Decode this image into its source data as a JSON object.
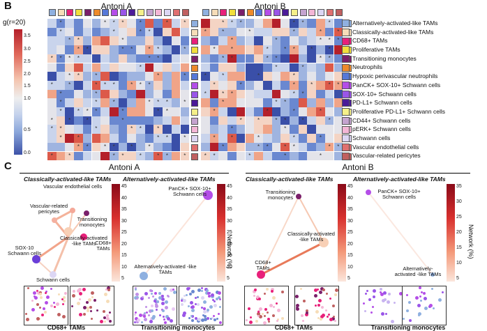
{
  "panel_b": {
    "letter": "B",
    "colorbar_title": "g(r=20)",
    "colorbar_ticks": [
      "3.5",
      "3.0",
      "2.5",
      "2.0",
      "1.5",
      "1.0",
      "0.5",
      "0.0"
    ],
    "heatmap_a_title": "Antoni A",
    "heatmap_b_title": "Antoni B",
    "cell_types": [
      {
        "name": "Alternatively-activated-like TAMs",
        "color": "#8fb0e0"
      },
      {
        "name": "Classically-activated-like TAMs",
        "color": "#f6ddb8"
      },
      {
        "name": "CD68+ TAMs",
        "color": "#e8207a"
      },
      {
        "name": "Proliferative TAMs",
        "color": "#f2df3c"
      },
      {
        "name": "Transitioning monocytes",
        "color": "#7a1f6a"
      },
      {
        "name": "Neutrophils",
        "color": "#ee8a2a"
      },
      {
        "name": "Hypoxic perivascular neutrophils",
        "color": "#5578d8"
      },
      {
        "name": "PanCK+ SOX-10+ Schwann cells",
        "color": "#b44ee8"
      },
      {
        "name": "SOX-10+ Schwann cells",
        "color": "#9a55e8"
      },
      {
        "name": "PD-L1+ Schwann cells",
        "color": "#4a1a98"
      },
      {
        "name": "Proliferative PD-L1+ Schwann cells",
        "color": "#f5f08a"
      },
      {
        "name": "CD44+ Schwann cells",
        "color": "#c5a4d0"
      },
      {
        "name": "pERK+ Schwann cells",
        "color": "#f4b6d6"
      },
      {
        "name": "Schwann cells",
        "color": "#dcd6f4"
      },
      {
        "name": "Vascular endothelial cells",
        "color": "#e07070"
      },
      {
        "name": "Vascular-related pericytes",
        "color": "#c06060"
      }
    ]
  },
  "panel_c": {
    "letter": "C",
    "group_a_title": "Antoni A",
    "group_b_title": "Antoni B",
    "networks": [
      {
        "subtitle": "Classically-activated-like TAMs",
        "labels": [
          "Vascular endothelial cells",
          "Vascular-related pericytes",
          "Transitioning monocytes",
          "Classically-activated -like TAMs",
          "CD68+ TAMs",
          "SOX-10 Schwann cells",
          "Schwann cells"
        ],
        "ticks": [
          "45",
          "40",
          "35",
          "30",
          "25",
          "20",
          "15",
          "10",
          "5"
        ],
        "scale": "red"
      },
      {
        "subtitle": "Alternatively-activated-like TAMs",
        "labels": [
          "PanCK+ SOX-10+ Schwann cells",
          "Alternatively-activated -like TAMs"
        ],
        "ticks": [
          "45",
          "40",
          "35",
          "30",
          "25",
          "20",
          "15",
          "10",
          "5"
        ],
        "scale": "red",
        "axis_label": "Network (%)"
      },
      {
        "subtitle": "Classically-activated-like TAMs",
        "labels": [
          "Transitioning monocytes",
          "Classically-activated -like TAMs",
          "CD68+ TAMs"
        ],
        "ticks": [
          "45",
          "40",
          "35",
          "30",
          "25",
          "20",
          "15",
          "10",
          "5"
        ],
        "scale": "red"
      },
      {
        "subtitle": "Alternatively-activated-like TAMs",
        "labels": [
          "PanCK+ SOX-10+ Schwann cells",
          "Alternatively-activated -like TAMs"
        ],
        "ticks": [
          "35",
          "30",
          "25",
          "20",
          "15",
          "10",
          "5"
        ],
        "scale": "red",
        "axis_label": "Network (%)"
      }
    ],
    "bottom_labels": [
      "CD68+ TAMs",
      "Transitioning monocytes",
      "CD68+ TAMs",
      "Transitioning monocytes"
    ]
  }
}
